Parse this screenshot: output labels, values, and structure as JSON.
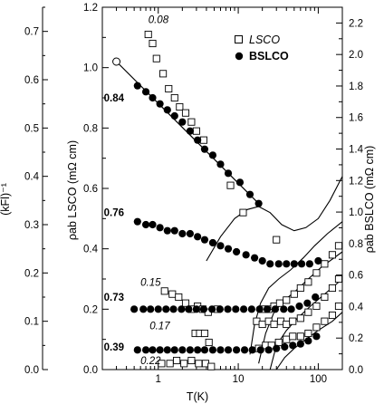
{
  "chart_data": {
    "type": "scatter",
    "xlabel": "T(K)",
    "x_scale": "log",
    "xlim": [
      0.2,
      200
    ],
    "x_ticks": [
      1,
      10,
      100
    ],
    "x_tick_labels": [
      "1",
      "10",
      "100"
    ],
    "ylabel_left": "ρab LSCO (mΩ cm)",
    "ylim_left": [
      0,
      1.2
    ],
    "y_ticks_left": [
      "0.0",
      "0.2",
      "0.4",
      "0.6",
      "0.8",
      "1.0",
      "1.2"
    ],
    "ylabel_right": "ρab BSLCO (mΩ cm)",
    "ylim_right": [
      0,
      2.3
    ],
    "y_ticks_right": [
      "0.0",
      "0.2",
      "0.4",
      "0.6",
      "0.8",
      "1.0",
      "1.2",
      "1.4",
      "1.6",
      "1.8",
      "2.0",
      "2.2"
    ],
    "ylabel_far_left": "(kFl)⁻¹",
    "ylim_far_left": [
      0,
      0.75
    ],
    "y_ticks_far_left": [
      "0.0",
      "0.1",
      "0.2",
      "0.3",
      "0.4",
      "0.5",
      "0.6",
      "0.7"
    ],
    "legend": {
      "position": "top-right",
      "entries": [
        {
          "label": "LSCO",
          "marker": "open-square"
        },
        {
          "label": "BSLCO",
          "marker": "filled-circle"
        }
      ]
    },
    "annotations": [
      {
        "text": "0.08",
        "style": "italic",
        "x": 0.75,
        "y": 1.16
      },
      {
        "text": "0.84",
        "style": "bold",
        "x": 0.3,
        "y": 0.9
      },
      {
        "text": "0.76",
        "style": "bold",
        "x": 0.3,
        "y": 0.52
      },
      {
        "text": "0.15",
        "style": "italic",
        "x": 0.6,
        "y": 0.29
      },
      {
        "text": "0.73",
        "style": "bold",
        "x": 0.3,
        "y": 0.24
      },
      {
        "text": "0.17",
        "style": "italic",
        "x": 0.78,
        "y": 0.145
      },
      {
        "text": "0.39",
        "style": "bold",
        "x": 0.3,
        "y": 0.075
      },
      {
        "text": "0.22",
        "style": "italic",
        "x": 0.6,
        "y": 0.03
      }
    ],
    "series": [
      {
        "name": "LSCO",
        "marker": "open-square",
        "points": [
          [
            0.75,
            1.11
          ],
          [
            0.85,
            1.08
          ],
          [
            0.95,
            1.03
          ],
          [
            1.15,
            0.98
          ],
          [
            1.35,
            0.93
          ],
          [
            1.6,
            0.9
          ],
          [
            1.85,
            0.87
          ],
          [
            2.2,
            0.85
          ],
          [
            2.6,
            0.82
          ],
          [
            3.0,
            0.79
          ],
          [
            3.7,
            0.76
          ],
          [
            8.0,
            0.61
          ],
          [
            11.5,
            0.52
          ],
          [
            30.0,
            0.43
          ],
          [
            1.2,
            0.26
          ],
          [
            1.5,
            0.25
          ],
          [
            1.8,
            0.24
          ],
          [
            2.2,
            0.22
          ],
          [
            2.6,
            0.2
          ],
          [
            3.1,
            0.21
          ],
          [
            3.6,
            0.2
          ],
          [
            4.2,
            0.19
          ],
          [
            5.5,
            0.2
          ],
          [
            20,
            0.2
          ],
          [
            24,
            0.2
          ],
          [
            28,
            0.21
          ],
          [
            33,
            0.22
          ],
          [
            40,
            0.23
          ],
          [
            50,
            0.25
          ],
          [
            60,
            0.27
          ],
          [
            75,
            0.29
          ],
          [
            95,
            0.32
          ],
          [
            120,
            0.35
          ],
          [
            150,
            0.38
          ],
          [
            180,
            0.41
          ],
          [
            2.9,
            0.12
          ],
          [
            3.3,
            0.12
          ],
          [
            3.8,
            0.12
          ],
          [
            4.3,
            0.09
          ],
          [
            17,
            0.16
          ],
          [
            20,
            0.15
          ],
          [
            24,
            0.16
          ],
          [
            28,
            0.15
          ],
          [
            34,
            0.16
          ],
          [
            40,
            0.15
          ],
          [
            48,
            0.16
          ],
          [
            60,
            0.17
          ],
          [
            75,
            0.19
          ],
          [
            95,
            0.21
          ],
          [
            120,
            0.24
          ],
          [
            150,
            0.27
          ],
          [
            180,
            0.3
          ],
          [
            1.1,
            0.02
          ],
          [
            1.4,
            0.02
          ],
          [
            1.7,
            0.03
          ],
          [
            2.1,
            0.02
          ],
          [
            2.6,
            0.03
          ],
          [
            3.2,
            0.02
          ],
          [
            3.9,
            0.02
          ],
          [
            4.6,
            0.01
          ],
          [
            18,
            0.07
          ],
          [
            22,
            0.08
          ],
          [
            26,
            0.08
          ],
          [
            32,
            0.09
          ],
          [
            40,
            0.1
          ],
          [
            48,
            0.11
          ],
          [
            60,
            0.11
          ],
          [
            75,
            0.12
          ],
          [
            95,
            0.14
          ],
          [
            120,
            0.16
          ],
          [
            150,
            0.18
          ],
          [
            180,
            0.21
          ]
        ]
      },
      {
        "name": "BSLCO",
        "marker": "filled-circle",
        "points": [
          [
            0.55,
            0.94
          ],
          [
            0.7,
            0.92
          ],
          [
            0.85,
            0.9
          ],
          [
            1.05,
            0.88
          ],
          [
            1.3,
            0.86
          ],
          [
            1.6,
            0.84
          ],
          [
            2.0,
            0.82
          ],
          [
            2.5,
            0.79
          ],
          [
            3.1,
            0.76
          ],
          [
            3.8,
            0.73
          ],
          [
            4.8,
            0.71
          ],
          [
            6.0,
            0.68
          ],
          [
            7.5,
            0.65
          ],
          [
            10.5,
            0.62
          ],
          [
            14,
            0.58
          ],
          [
            18,
            0.55
          ],
          [
            0.55,
            0.49
          ],
          [
            0.7,
            0.48
          ],
          [
            0.85,
            0.48
          ],
          [
            1.05,
            0.47
          ],
          [
            1.3,
            0.46
          ],
          [
            1.6,
            0.46
          ],
          [
            2.0,
            0.45
          ],
          [
            2.5,
            0.45
          ],
          [
            3.1,
            0.44
          ],
          [
            3.8,
            0.43
          ],
          [
            4.8,
            0.42
          ],
          [
            6.0,
            0.41
          ],
          [
            7.5,
            0.4
          ],
          [
            9.5,
            0.39
          ],
          [
            12.5,
            0.38
          ],
          [
            16,
            0.37
          ],
          [
            20,
            0.36
          ],
          [
            25,
            0.35
          ],
          [
            32,
            0.35
          ],
          [
            40,
            0.35
          ],
          [
            50,
            0.35
          ],
          [
            62,
            0.35
          ],
          [
            78,
            0.35
          ],
          [
            100,
            0.36
          ],
          [
            0.5,
            0.2
          ],
          [
            0.65,
            0.2
          ],
          [
            0.8,
            0.2
          ],
          [
            1.0,
            0.2
          ],
          [
            1.25,
            0.2
          ],
          [
            1.55,
            0.2
          ],
          [
            1.95,
            0.2
          ],
          [
            2.4,
            0.2
          ],
          [
            3.0,
            0.2
          ],
          [
            3.7,
            0.2
          ],
          [
            4.7,
            0.2
          ],
          [
            5.9,
            0.2
          ],
          [
            7.4,
            0.2
          ],
          [
            9.3,
            0.2
          ],
          [
            11.7,
            0.2
          ],
          [
            14.7,
            0.2
          ],
          [
            18.5,
            0.2
          ],
          [
            23,
            0.2
          ],
          [
            29,
            0.2
          ],
          [
            37,
            0.2
          ],
          [
            46,
            0.2
          ],
          [
            58,
            0.21
          ],
          [
            73,
            0.22
          ],
          [
            92,
            0.24
          ],
          [
            0.55,
            0.065
          ],
          [
            0.7,
            0.065
          ],
          [
            0.85,
            0.065
          ],
          [
            1.05,
            0.065
          ],
          [
            1.3,
            0.065
          ],
          [
            1.6,
            0.065
          ],
          [
            2.0,
            0.065
          ],
          [
            2.5,
            0.065
          ],
          [
            3.1,
            0.065
          ],
          [
            3.8,
            0.065
          ],
          [
            4.8,
            0.065
          ],
          [
            6.0,
            0.065
          ],
          [
            7.5,
            0.065
          ],
          [
            9.5,
            0.065
          ],
          [
            12,
            0.065
          ],
          [
            15,
            0.065
          ],
          [
            19,
            0.065
          ],
          [
            24,
            0.065
          ],
          [
            30,
            0.07
          ],
          [
            38,
            0.075
          ],
          [
            48,
            0.08
          ],
          [
            60,
            0.085
          ],
          [
            75,
            0.095
          ],
          [
            95,
            0.11
          ]
        ]
      }
    ],
    "fit_line": {
      "type": "log-linear",
      "points": [
        [
          0.3,
          1.02
        ],
        [
          18,
          0.55
        ]
      ]
    },
    "curves": [
      [
        [
          4.0,
          0.36
        ],
        [
          6,
          0.44
        ],
        [
          9,
          0.5
        ],
        [
          13,
          0.53
        ],
        [
          18,
          0.54
        ],
        [
          25,
          0.52
        ],
        [
          35,
          0.48
        ],
        [
          50,
          0.46
        ],
        [
          70,
          0.47
        ],
        [
          100,
          0.5
        ],
        [
          140,
          0.56
        ],
        [
          200,
          0.64
        ]
      ],
      [
        [
          14,
          0.05
        ],
        [
          16,
          0.15
        ],
        [
          19,
          0.22
        ],
        [
          24,
          0.27
        ],
        [
          32,
          0.3
        ],
        [
          45,
          0.33
        ],
        [
          65,
          0.37
        ],
        [
          90,
          0.41
        ],
        [
          130,
          0.45
        ],
        [
          200,
          0.49
        ]
      ],
      [
        [
          18,
          0.02
        ],
        [
          22,
          0.12
        ],
        [
          28,
          0.19
        ],
        [
          38,
          0.23
        ],
        [
          52,
          0.26
        ],
        [
          75,
          0.3
        ],
        [
          110,
          0.34
        ],
        [
          200,
          0.39
        ]
      ],
      [
        [
          25,
          0.0
        ],
        [
          30,
          0.08
        ],
        [
          40,
          0.13
        ],
        [
          55,
          0.17
        ],
        [
          80,
          0.21
        ],
        [
          120,
          0.25
        ],
        [
          200,
          0.3
        ]
      ],
      [
        [
          30,
          0.0
        ],
        [
          38,
          0.04
        ],
        [
          50,
          0.07
        ],
        [
          70,
          0.1
        ],
        [
          100,
          0.13
        ],
        [
          150,
          0.16
        ],
        [
          200,
          0.19
        ]
      ]
    ]
  }
}
